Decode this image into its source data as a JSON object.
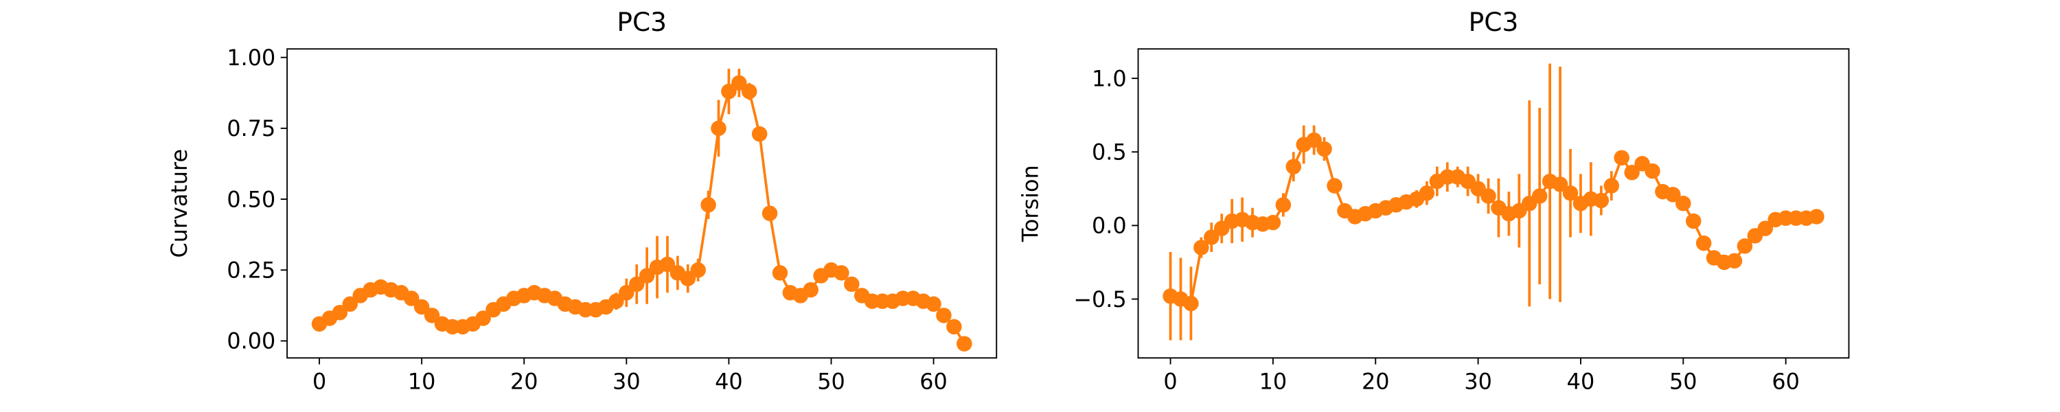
{
  "chart_data": [
    {
      "type": "line",
      "title": "PC3",
      "ylabel": "Curvature",
      "x": [
        0,
        1,
        2,
        3,
        4,
        5,
        6,
        7,
        8,
        9,
        10,
        11,
        12,
        13,
        14,
        15,
        16,
        17,
        18,
        19,
        20,
        21,
        22,
        23,
        24,
        25,
        26,
        27,
        28,
        29,
        30,
        31,
        32,
        33,
        34,
        35,
        36,
        37,
        38,
        39,
        40,
        41,
        42,
        43,
        44,
        45,
        46,
        47,
        48,
        49,
        50,
        51,
        52,
        53,
        54,
        55,
        56,
        57,
        58,
        59,
        60,
        61,
        62,
        63
      ],
      "series": [
        {
          "color": "#ff7f0e",
          "values": [
            0.06,
            0.08,
            0.1,
            0.13,
            0.16,
            0.18,
            0.19,
            0.18,
            0.17,
            0.15,
            0.12,
            0.09,
            0.06,
            0.05,
            0.05,
            0.06,
            0.08,
            0.11,
            0.13,
            0.15,
            0.16,
            0.17,
            0.16,
            0.15,
            0.13,
            0.12,
            0.11,
            0.11,
            0.12,
            0.14,
            0.17,
            0.2,
            0.23,
            0.26,
            0.27,
            0.24,
            0.22,
            0.25,
            0.48,
            0.75,
            0.88,
            0.91,
            0.88,
            0.73,
            0.45,
            0.24,
            0.17,
            0.16,
            0.18,
            0.23,
            0.25,
            0.24,
            0.2,
            0.16,
            0.14,
            0.14,
            0.14,
            0.15,
            0.15,
            0.14,
            0.13,
            0.09,
            0.05,
            -0.01
          ],
          "errors": [
            0.01,
            0.01,
            0.01,
            0.01,
            0.01,
            0.01,
            0.01,
            0.01,
            0.01,
            0.01,
            0.01,
            0.01,
            0.01,
            0.01,
            0.01,
            0.01,
            0.01,
            0.01,
            0.01,
            0.01,
            0.01,
            0.01,
            0.01,
            0.01,
            0.01,
            0.01,
            0.01,
            0.01,
            0.02,
            0.03,
            0.05,
            0.07,
            0.1,
            0.11,
            0.1,
            0.06,
            0.05,
            0.04,
            0.05,
            0.1,
            0.08,
            0.05,
            0.03,
            0.02,
            0.02,
            0.02,
            0.01,
            0.01,
            0.02,
            0.02,
            0.02,
            0.02,
            0.01,
            0.01,
            0.01,
            0.01,
            0.01,
            0.01,
            0.01,
            0.01,
            0.01,
            0.01,
            0.01,
            0.01
          ]
        }
      ],
      "xlim": [
        -3.15,
        66.15
      ],
      "xticks": [
        0,
        10,
        20,
        30,
        40,
        50,
        60
      ],
      "ylim": [
        -0.06,
        1.03
      ],
      "yticks": [
        {
          "value": 0,
          "label": "0.00"
        },
        {
          "value": 0.25,
          "label": "0.25"
        },
        {
          "value": 0.5,
          "label": "0.50"
        },
        {
          "value": 0.75,
          "label": "0.75"
        },
        {
          "value": 1,
          "label": "1.00"
        }
      ]
    },
    {
      "type": "line",
      "title": "PC3",
      "ylabel": "Torsion",
      "x": [
        0,
        1,
        2,
        3,
        4,
        5,
        6,
        7,
        8,
        9,
        10,
        11,
        12,
        13,
        14,
        15,
        16,
        17,
        18,
        19,
        20,
        21,
        22,
        23,
        24,
        25,
        26,
        27,
        28,
        29,
        30,
        31,
        32,
        33,
        34,
        35,
        36,
        37,
        38,
        39,
        40,
        41,
        42,
        43,
        44,
        45,
        46,
        47,
        48,
        49,
        50,
        51,
        52,
        53,
        54,
        55,
        56,
        57,
        58,
        59,
        60,
        61,
        62,
        63
      ],
      "series": [
        {
          "color": "#ff7f0e",
          "values": [
            -0.48,
            -0.5,
            -0.53,
            -0.15,
            -0.08,
            -0.02,
            0.03,
            0.04,
            0.02,
            0.01,
            0.02,
            0.14,
            0.4,
            0.55,
            0.58,
            0.52,
            0.27,
            0.1,
            0.06,
            0.08,
            0.1,
            0.12,
            0.14,
            0.16,
            0.18,
            0.22,
            0.3,
            0.33,
            0.33,
            0.3,
            0.25,
            0.2,
            0.12,
            0.08,
            0.1,
            0.15,
            0.2,
            0.3,
            0.28,
            0.22,
            0.15,
            0.18,
            0.17,
            0.27,
            0.46,
            0.36,
            0.42,
            0.37,
            0.23,
            0.21,
            0.15,
            0.03,
            -0.12,
            -0.22,
            -0.25,
            -0.24,
            -0.14,
            -0.07,
            -0.02,
            0.04,
            0.05,
            0.05,
            0.05,
            0.06
          ],
          "errors": [
            0.3,
            0.28,
            0.25,
            0.07,
            0.1,
            0.1,
            0.15,
            0.15,
            0.1,
            0.05,
            0.05,
            0.08,
            0.1,
            0.13,
            0.1,
            0.08,
            0.05,
            0.05,
            0.05,
            0.05,
            0.05,
            0.05,
            0.05,
            0.05,
            0.06,
            0.08,
            0.1,
            0.1,
            0.07,
            0.1,
            0.1,
            0.12,
            0.2,
            0.15,
            0.25,
            0.7,
            0.6,
            0.8,
            0.8,
            0.3,
            0.2,
            0.25,
            0.1,
            0.1,
            0.05,
            0.05,
            0.05,
            0.04,
            0.04,
            0.04,
            0.04,
            0.04,
            0.03,
            0.03,
            0.03,
            0.03,
            0.03,
            0.03,
            0.03,
            0.03,
            0.03,
            0.03,
            0.03,
            0.03
          ]
        }
      ],
      "xlim": [
        -3.15,
        66.15
      ],
      "xticks": [
        0,
        10,
        20,
        30,
        40,
        50,
        60
      ],
      "ylim": [
        -0.9,
        1.2
      ],
      "yticks": [
        {
          "value": -0.5,
          "label": "−0.5"
        },
        {
          "value": 0,
          "label": "0.0"
        },
        {
          "value": 0.5,
          "label": "0.5"
        },
        {
          "value": 1,
          "label": "1.0"
        }
      ]
    }
  ]
}
